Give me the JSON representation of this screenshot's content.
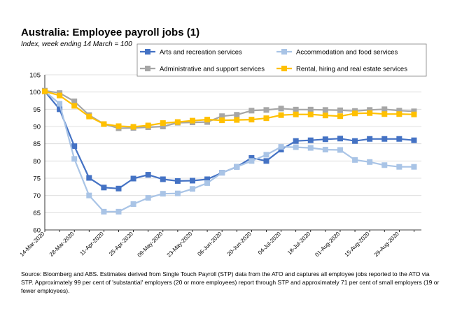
{
  "chart_data": {
    "type": "line",
    "title": "Australia:  Employee payroll jobs (1)",
    "subtitle": "Index, week ending 14 March = 100",
    "ylim": [
      60,
      105
    ],
    "yticks": [
      60,
      65,
      70,
      75,
      80,
      85,
      90,
      95,
      100,
      105
    ],
    "x": [
      "14-Mar-2020",
      "21-Mar-2020",
      "28-Mar-2020",
      "04-Apr-2020",
      "11-Apr-2020",
      "18-Apr-2020",
      "25-Apr-2020",
      "02-May-2020",
      "09-May-2020",
      "16-May-2020",
      "23-May-2020",
      "30-May-2020",
      "06-Jun-2020",
      "13-Jun-2020",
      "20-Jun-2020",
      "27-Jun-2020",
      "04-Jul-2020",
      "11-Jul-2020",
      "18-Jul-2020",
      "25-Jul-2020",
      "01-Aug-2020",
      "08-Aug-2020",
      "15-Aug-2020",
      "22-Aug-2020",
      "29-Aug-2020",
      "05-Sep-2020"
    ],
    "x_tick_labels": [
      "14-Mar-2020",
      "28-Mar-2020",
      "11-Apr-2020",
      "25-Apr-2020",
      "09-May-2020",
      "23-May-2020",
      "06-Jun-2020",
      "20-Jun-2020",
      "04-Jul-2020",
      "18-Jul-2020",
      "01-Aug-2020",
      "15-Aug-2020",
      "29-Aug-2020"
    ],
    "grid": "horizontal",
    "legend_position": "top-right",
    "series": [
      {
        "name": "Arts and recreation services",
        "color": "#4472c4",
        "values": [
          100.2,
          95.0,
          84.3,
          75.1,
          72.3,
          72.0,
          74.9,
          76.0,
          74.7,
          74.2,
          74.3,
          74.7,
          76.6,
          78.3,
          80.9,
          80.0,
          83.3,
          85.8,
          86.0,
          86.3,
          86.5,
          85.8,
          86.4,
          86.4,
          86.4,
          86.0
        ]
      },
      {
        "name": "Accommodation and food services",
        "color": "#a9c4e6",
        "values": [
          100.2,
          96.6,
          80.6,
          70.0,
          65.3,
          65.3,
          67.5,
          69.3,
          70.5,
          70.6,
          71.9,
          73.6,
          76.6,
          78.3,
          80.0,
          81.8,
          84.1,
          84.0,
          83.8,
          83.3,
          83.2,
          80.3,
          79.7,
          78.8,
          78.3,
          78.3
        ]
      },
      {
        "name": "Administrative and support services",
        "color": "#a6a6a6",
        "values": [
          100.4,
          99.7,
          97.3,
          93.3,
          90.7,
          89.5,
          89.6,
          89.8,
          90.0,
          91.1,
          91.2,
          91.3,
          93.0,
          93.4,
          94.6,
          94.8,
          95.2,
          94.9,
          94.9,
          94.8,
          94.7,
          94.5,
          94.8,
          95.0,
          94.6,
          94.4
        ]
      },
      {
        "name": "Rental, hiring and real estate services",
        "color": "#ffc000",
        "values": [
          100.2,
          99.0,
          96.0,
          92.9,
          90.7,
          90.1,
          89.9,
          90.3,
          91.0,
          91.3,
          91.7,
          92.0,
          91.8,
          91.9,
          92.0,
          92.4,
          93.3,
          93.5,
          93.5,
          93.2,
          93.0,
          93.8,
          93.9,
          93.6,
          93.6,
          93.5
        ]
      }
    ]
  },
  "source_note": "Source: Bloomberg and ABS.  Estimates derived from Single Touch Payroll (STP) data from the ATO and captures all employee jobs reported to the ATO via STP.  Approximately 99 per cent of 'substantial' employers (20 or more employees) report through STP and approximately 71 per cent of small employers (19 or fewer employees)."
}
